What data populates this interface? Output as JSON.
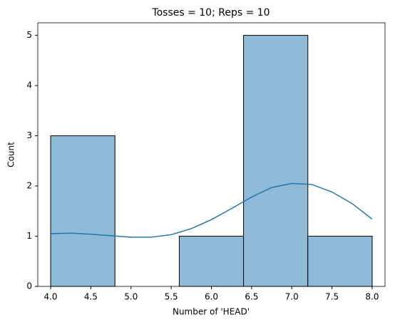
{
  "chart_data": {
    "type": "histogram",
    "title": "Tosses = 10; Reps = 10",
    "x_label": "Number of 'HEAD'",
    "y_label": "Count",
    "bins": [
      4.0,
      4.8,
      5.6,
      6.4,
      7.2,
      8.0
    ],
    "values": [
      3,
      0,
      1,
      5,
      1
    ],
    "color": "#8fbbd9",
    "edge_color": "#000000",
    "kde": {
      "color": "#1f77b4",
      "x": [
        4.0,
        4.25,
        4.5,
        4.75,
        5.0,
        5.25,
        5.5,
        5.75,
        6.0,
        6.25,
        6.5,
        6.75,
        7.0,
        7.25,
        7.5,
        7.75,
        8.0
      ],
      "values": [
        1.05,
        1.06,
        1.04,
        1.01,
        0.98,
        0.98,
        1.03,
        1.15,
        1.33,
        1.55,
        1.78,
        1.97,
        2.05,
        2.03,
        1.88,
        1.65,
        1.34
      ]
    },
    "xlim": [
      3.84,
      8.16
    ],
    "ylim": [
      0,
      5.25
    ],
    "xticks": [
      {
        "value": 4,
        "label": "4.0"
      },
      4.5,
      {
        "value": 5,
        "label": "5.0"
      },
      5.5,
      {
        "value": 6,
        "label": "6.0"
      },
      6.5,
      {
        "value": 7,
        "label": "7.0"
      },
      7.5,
      {
        "value": 8,
        "label": "8.0"
      }
    ],
    "yticks": [
      0,
      1,
      2,
      3,
      4,
      5
    ],
    "grid": false
  }
}
